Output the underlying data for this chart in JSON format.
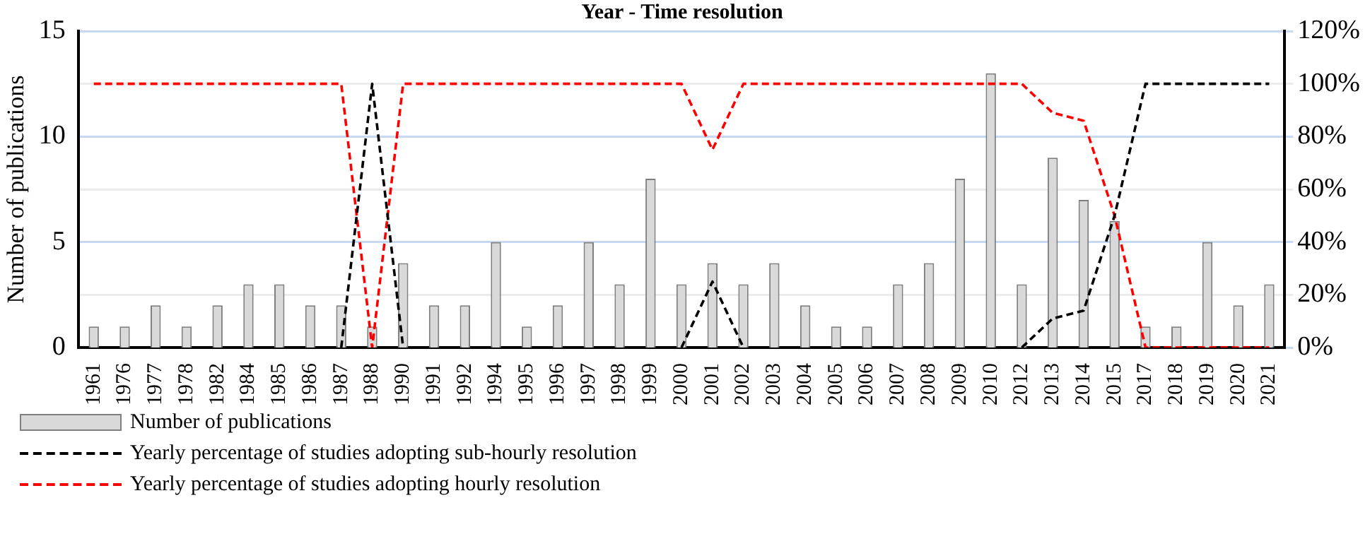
{
  "chart_data": {
    "type": "bar",
    "title": "Year - Time resolution",
    "ylabel": "Number of publications",
    "categories": [
      "1961",
      "1976",
      "1977",
      "1978",
      "1982",
      "1984",
      "1985",
      "1986",
      "1987",
      "1988",
      "1990",
      "1991",
      "1992",
      "1994",
      "1995",
      "1996",
      "1997",
      "1998",
      "1999",
      "2000",
      "2001",
      "2002",
      "2003",
      "2004",
      "2005",
      "2006",
      "2007",
      "2008",
      "2009",
      "2010",
      "2012",
      "2013",
      "2014",
      "2015",
      "2017",
      "2018",
      "2019",
      "2020",
      "2021"
    ],
    "series": [
      {
        "name": "Number of publications",
        "color": "#d9d9d9",
        "values": [
          1,
          1,
          2,
          1,
          2,
          3,
          3,
          2,
          2,
          1,
          4,
          2,
          2,
          5,
          1,
          2,
          5,
          3,
          8,
          3,
          4,
          3,
          4,
          2,
          1,
          1,
          3,
          4,
          8,
          13,
          3,
          9,
          7,
          6,
          1,
          1,
          5,
          2,
          3
        ]
      },
      {
        "name": "Yearly percentage of studies adopting sub-hourly resolution",
        "type": "line",
        "axis": "y2",
        "color": "#000000",
        "line_style": "dashed",
        "values": [
          null,
          null,
          null,
          null,
          null,
          null,
          null,
          null,
          0,
          100,
          0,
          null,
          null,
          null,
          null,
          null,
          null,
          null,
          null,
          0,
          25,
          0,
          null,
          null,
          null,
          null,
          null,
          null,
          null,
          null,
          0,
          11,
          14,
          50,
          100,
          100,
          100,
          100,
          100
        ]
      },
      {
        "name": "Yearly percentage of studies adopting hourly resolution",
        "type": "line",
        "axis": "y2",
        "color": "#ff0000",
        "line_style": "dashed",
        "values": [
          100,
          100,
          100,
          100,
          100,
          100,
          100,
          100,
          100,
          0,
          100,
          100,
          100,
          100,
          100,
          100,
          100,
          100,
          100,
          100,
          75,
          100,
          100,
          100,
          100,
          100,
          100,
          100,
          100,
          100,
          100,
          89,
          86,
          50,
          0,
          0,
          0,
          0,
          0
        ]
      }
    ],
    "ylim": [
      0,
      15
    ],
    "yticks": [
      0,
      5,
      10,
      15
    ],
    "y2lim": [
      0,
      120
    ],
    "y2ticks": [
      {
        "value": 0,
        "label": "0%"
      },
      {
        "value": 20,
        "label": "20%"
      },
      {
        "value": 40,
        "label": "40%"
      },
      {
        "value": 60,
        "label": "60%"
      },
      {
        "value": 80,
        "label": "80%"
      },
      {
        "value": 100,
        "label": "100%"
      },
      {
        "value": 120,
        "label": "120%"
      }
    ],
    "grid": true,
    "legend": "bottom left",
    "marker": "none"
  }
}
